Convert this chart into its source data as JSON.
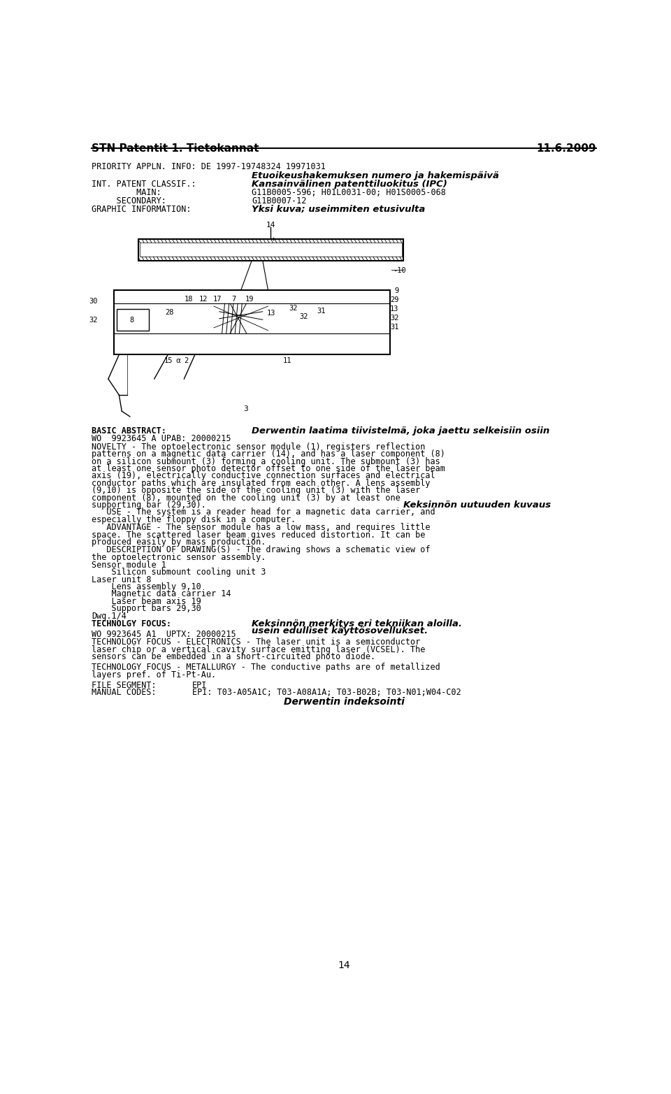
{
  "header_left": "STN Patentit 1. Tietokannat",
  "header_right": "11.6.2009",
  "page_number": "14",
  "priority_line": "PRIORITY APPLN. INFO: DE 1997-19748324 19971031",
  "italic_header1": "Etuoikeushakemuksen numero ja hakemispäivä",
  "patent_classif_label": "INT. PATENT CLASSIF.:",
  "italic_header2": "Kansainvälinen patenttiluokitus (IPC)",
  "main_label": "         MAIN:",
  "main_value": "G11B0005-596; H01L0031-00; H01S0005-068",
  "secondary_label": "     SECONDARY:",
  "secondary_value": "G11B0007-12",
  "graphic_label": "GRAPHIC INFORMATION:",
  "italic_graphic": "Yksi kuva; useimmiten etusivulta",
  "basic_abstract_label": "BASIC ABSTRACT:",
  "italic_abstract_header": "Derwentin laatima tiivistelmä, joka jaettu selkeisiin osiin",
  "wo_line": "WO  9923645 A UPAB: 20000215",
  "novelty_text": "NOVELTY - The optoelectronic sensor module (1) registers reflection\npatterns on a magnetic data carrier (14), and has a laser component (8)\non a silicon submount (3) forming a cooling unit. The submount (3) has\nat least one sensor photo detector offset to one side of the laser beam\naxis (19), electrically conductive connection surfaces and electrical\nconductor paths which are insulated from each other. A lens assembly\n(9,10) is opposite the side of the cooling unit (3) with the laser\ncomponent (8), mounted on the cooling unit (3) by at least one\nsupporting bar (29,30).",
  "italic_use_header": "Keksinnön uutuuden kuvaus",
  "use_line1": "   USE - The system is a reader head for a magnetic data carrier, and",
  "use_line2": "especially the floppy disk in a computer.",
  "advantage_text": "   ADVANTAGE - The sensor module has a low mass, and requires little\nspace. The scattered laser beam gives reduced distortion. It can be\nproduced easily by mass production.",
  "description_text": "   DESCRIPTION OF DRAWING(S) - The drawing shows a schematic view of\nthe optoelectronic sensor assembly.",
  "sensor_module_text": "Sensor module 1\n    Silicon submount cooling unit 3\nLaser unit 8\n    Lens assembly 9,10\n    Magnetic data carrier 14\n    Laser beam axis 19\n    Support bars 29,30\nDwg.1/4",
  "technolgy_label": "TECHNOLGY FOCUS:",
  "italic_technology_line1": "Keksinnön merkitys eri tekniikan aloilla.",
  "italic_technology_line2": "usein edulliset käyttösovellukset.",
  "wo_uptx_line": "WO 9923645 A1  UPTX: 20000215",
  "technology_electronics_text": "TECHNOLOGY FOCUS - ELECTRONICS - The laser unit is a semiconductor\nlaser chip or a vertical cavity surface emitting laser (VCSEL). The\nsensors can be embedded in a short-circuited photo diode.",
  "technology_metallurgy_text": "TECHNOLOGY FOCUS - METALLURGY - The conductive paths are of metallized\nlayers pref. of Ti-Pt-Au.",
  "file_segment_label": "FILE SEGMENT:",
  "file_segment_value": "EPI",
  "manual_codes_label": "MANUAL CODES:",
  "manual_codes_value": "EPI: T03-A05A1C; T03-A08A1A; T03-B02B; T03-N01;W04-C02",
  "italic_derwent_index": "Derwentin indeksointi",
  "bg_color": "#ffffff",
  "text_color": "#000000",
  "mono_font": "DejaVu Sans Mono",
  "sans_font": "DejaVu Sans"
}
